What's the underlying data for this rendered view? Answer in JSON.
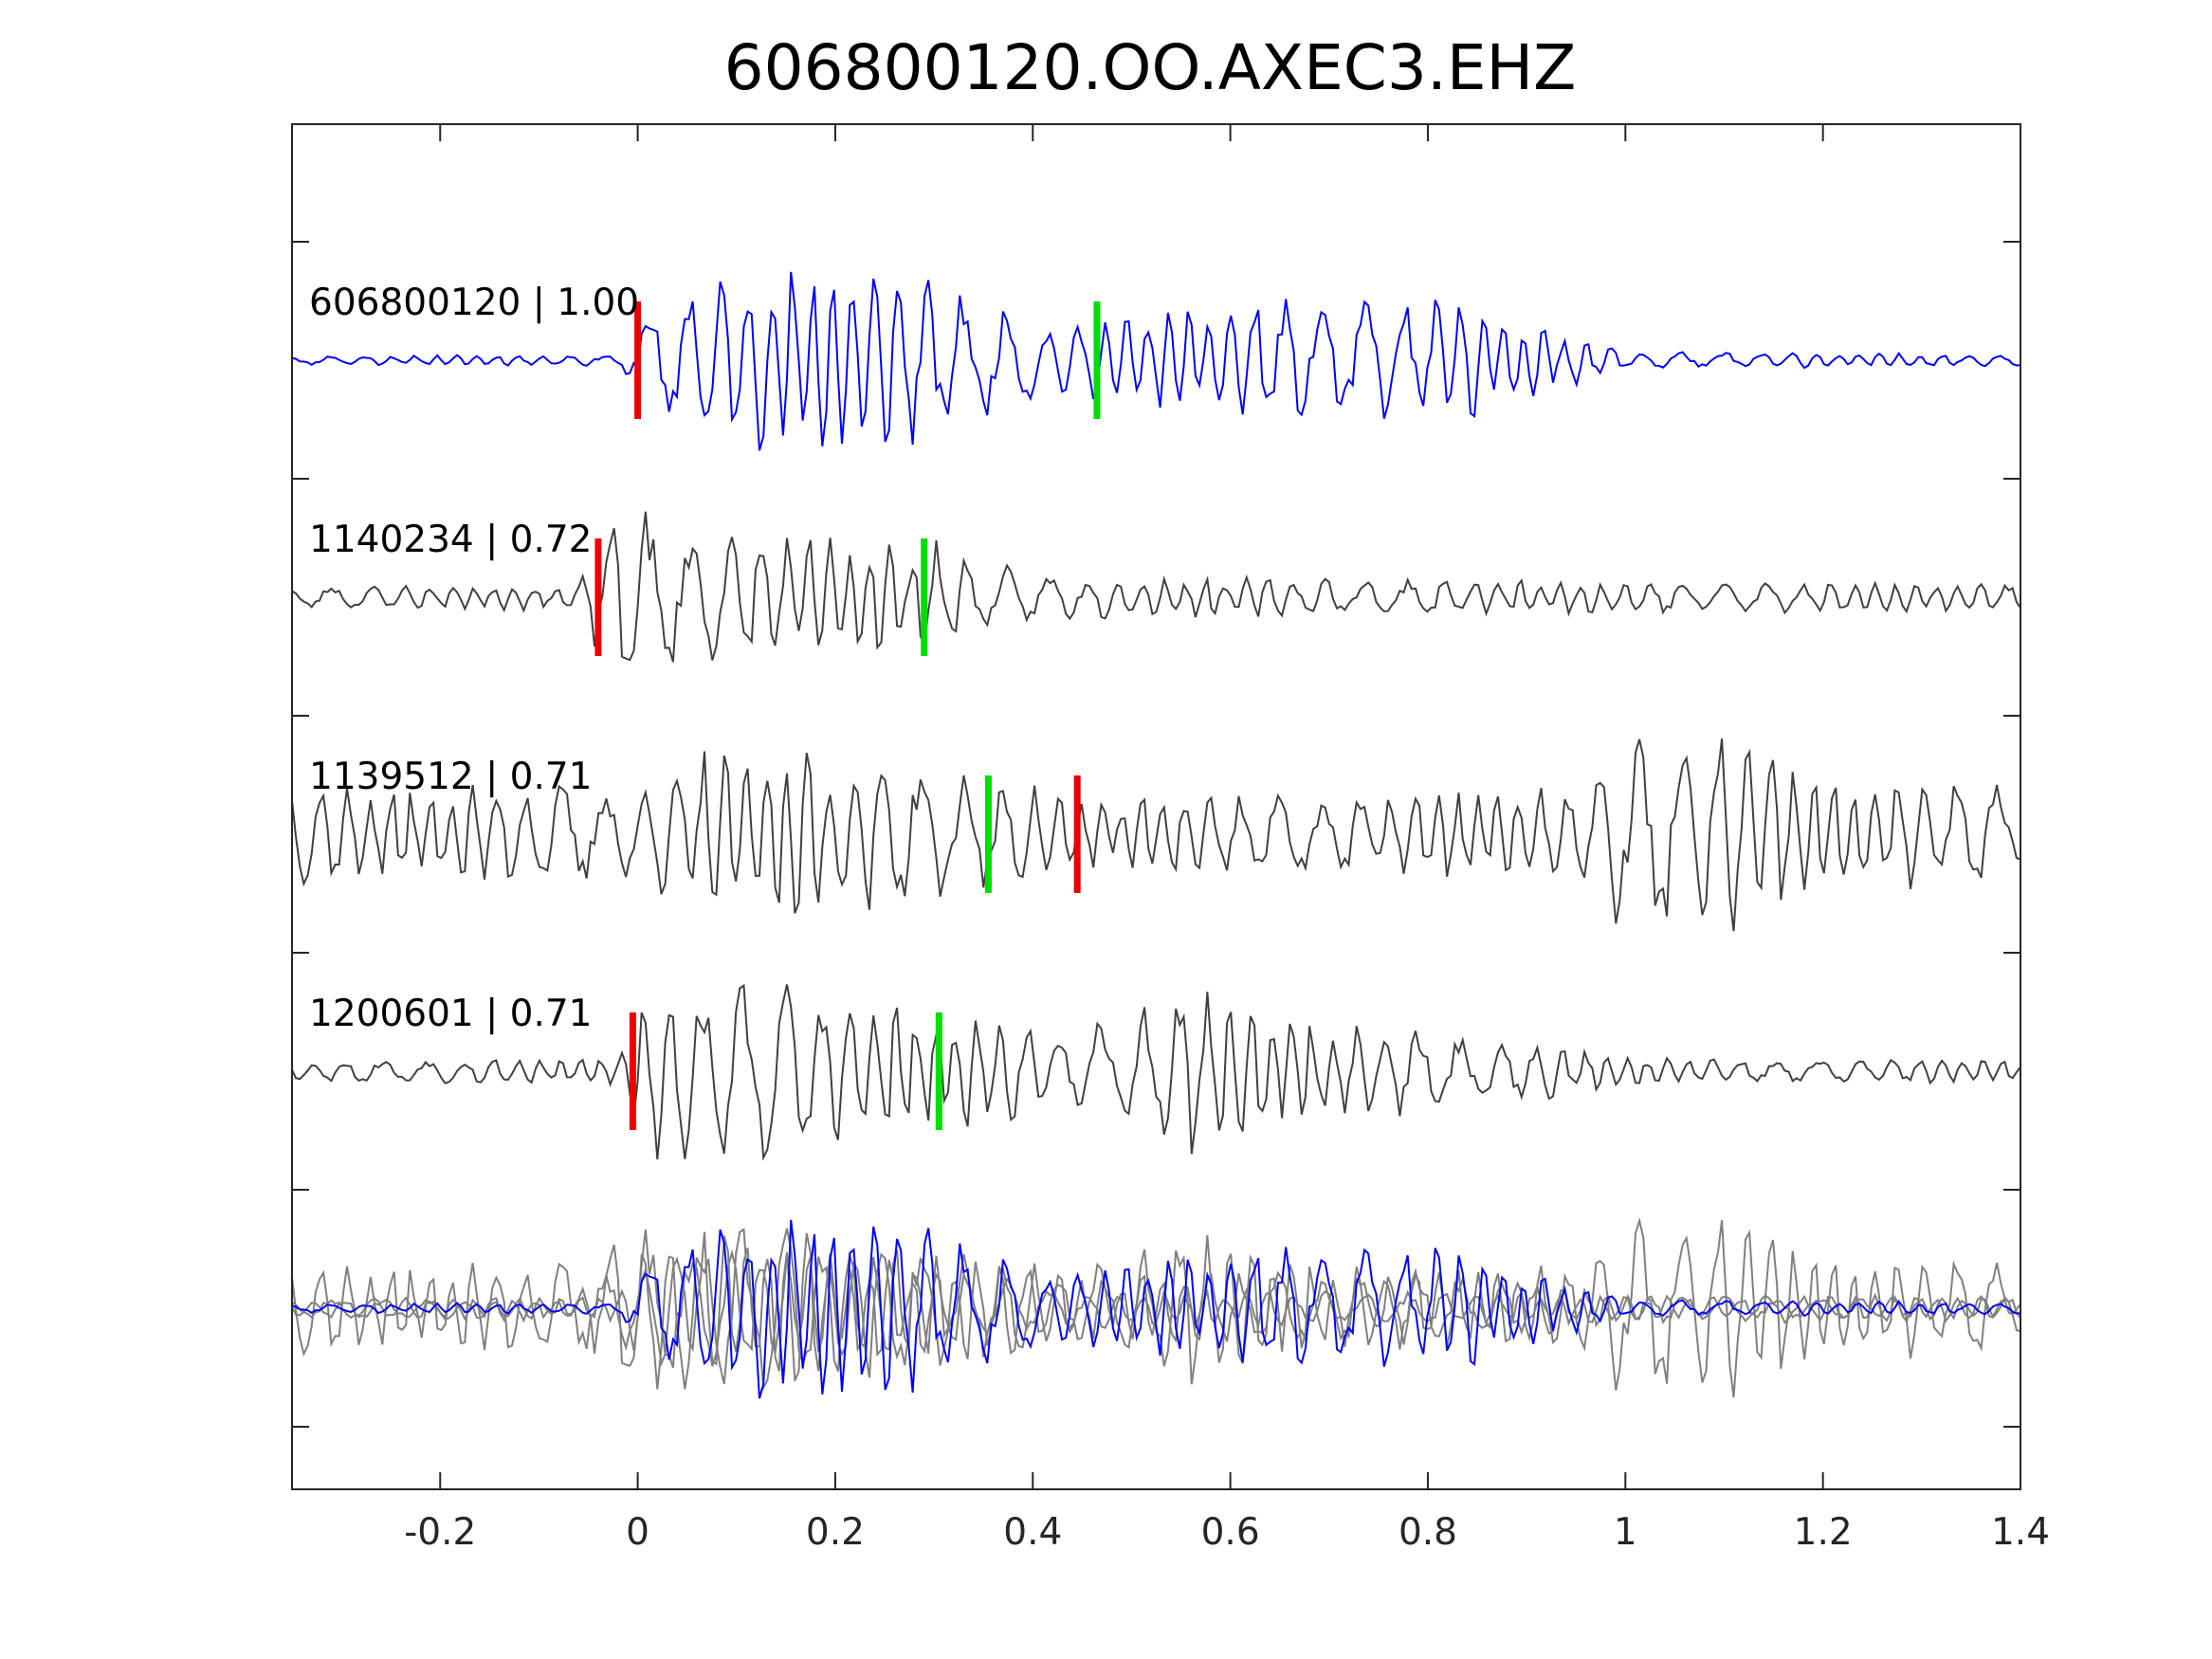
{
  "chart_data": {
    "type": "line",
    "title": "606800120.OO.AXEC3.EHZ",
    "xlabel": "",
    "ylabel": "",
    "xlim": [
      -0.35,
      1.4
    ],
    "xticks": [
      "-0.2",
      "0",
      "0.2",
      "0.4",
      "0.6",
      "0.8",
      "1",
      "1.2",
      "1.4"
    ],
    "yticks_labeled": false,
    "grid": false,
    "series": [
      {
        "label": "606800120 | 1.00",
        "color": "#0000ff",
        "red_pick": 0.0,
        "green_pick": 0.465,
        "envelope": [
          {
            "t": -0.35,
            "a": 0.04
          },
          {
            "t": -0.02,
            "a": 0.05
          },
          {
            "t": 0.02,
            "a": 0.65
          },
          {
            "t": 0.2,
            "a": 0.95
          },
          {
            "t": 0.3,
            "a": 0.7
          },
          {
            "t": 0.42,
            "a": 0.3
          },
          {
            "t": 0.5,
            "a": 0.45
          },
          {
            "t": 0.6,
            "a": 0.55
          },
          {
            "t": 0.85,
            "a": 0.55
          },
          {
            "t": 0.93,
            "a": 0.3
          },
          {
            "t": 1.0,
            "a": 0.08
          },
          {
            "t": 1.4,
            "a": 0.05
          }
        ]
      },
      {
        "label": "1140234 | 0.72",
        "color": "#404040",
        "red_pick": -0.04,
        "green_pick": 0.29,
        "envelope": [
          {
            "t": -0.35,
            "a": 0.1
          },
          {
            "t": -0.06,
            "a": 0.12
          },
          {
            "t": -0.02,
            "a": 0.9
          },
          {
            "t": 0.05,
            "a": 0.6
          },
          {
            "t": 0.3,
            "a": 0.5
          },
          {
            "t": 0.4,
            "a": 0.2
          },
          {
            "t": 1.4,
            "a": 0.12
          }
        ]
      },
      {
        "label": "1139512 | 0.71",
        "color": "#404040",
        "red_pick": 0.445,
        "green_pick": 0.355,
        "envelope": [
          {
            "t": -0.35,
            "a": 0.45
          },
          {
            "t": 0.0,
            "a": 0.45
          },
          {
            "t": 0.1,
            "a": 0.9
          },
          {
            "t": 0.3,
            "a": 0.6
          },
          {
            "t": 0.45,
            "a": 0.35
          },
          {
            "t": 0.95,
            "a": 0.4
          },
          {
            "t": 1.0,
            "a": 0.9
          },
          {
            "t": 1.1,
            "a": 0.95
          },
          {
            "t": 1.2,
            "a": 0.5
          },
          {
            "t": 1.4,
            "a": 0.45
          }
        ]
      },
      {
        "label": "1200601 | 0.71",
        "color": "#404040",
        "red_pick": -0.005,
        "green_pick": 0.305,
        "envelope": [
          {
            "t": -0.35,
            "a": 0.1
          },
          {
            "t": -0.02,
            "a": 0.12
          },
          {
            "t": 0.01,
            "a": 0.85
          },
          {
            "t": 0.2,
            "a": 0.75
          },
          {
            "t": 0.32,
            "a": 0.5
          },
          {
            "t": 0.5,
            "a": 0.45
          },
          {
            "t": 0.55,
            "a": 0.85
          },
          {
            "t": 0.65,
            "a": 0.5
          },
          {
            "t": 0.9,
            "a": 0.3
          },
          {
            "t": 1.0,
            "a": 0.12
          },
          {
            "t": 1.4,
            "a": 0.1
          }
        ]
      }
    ],
    "stack_trace_colors": [
      "#808080",
      "#808080",
      "#808080",
      "#0000ff"
    ],
    "pick_colors": {
      "red": "#ee0000",
      "green": "#00dd00"
    },
    "axis_color": "#262626"
  }
}
